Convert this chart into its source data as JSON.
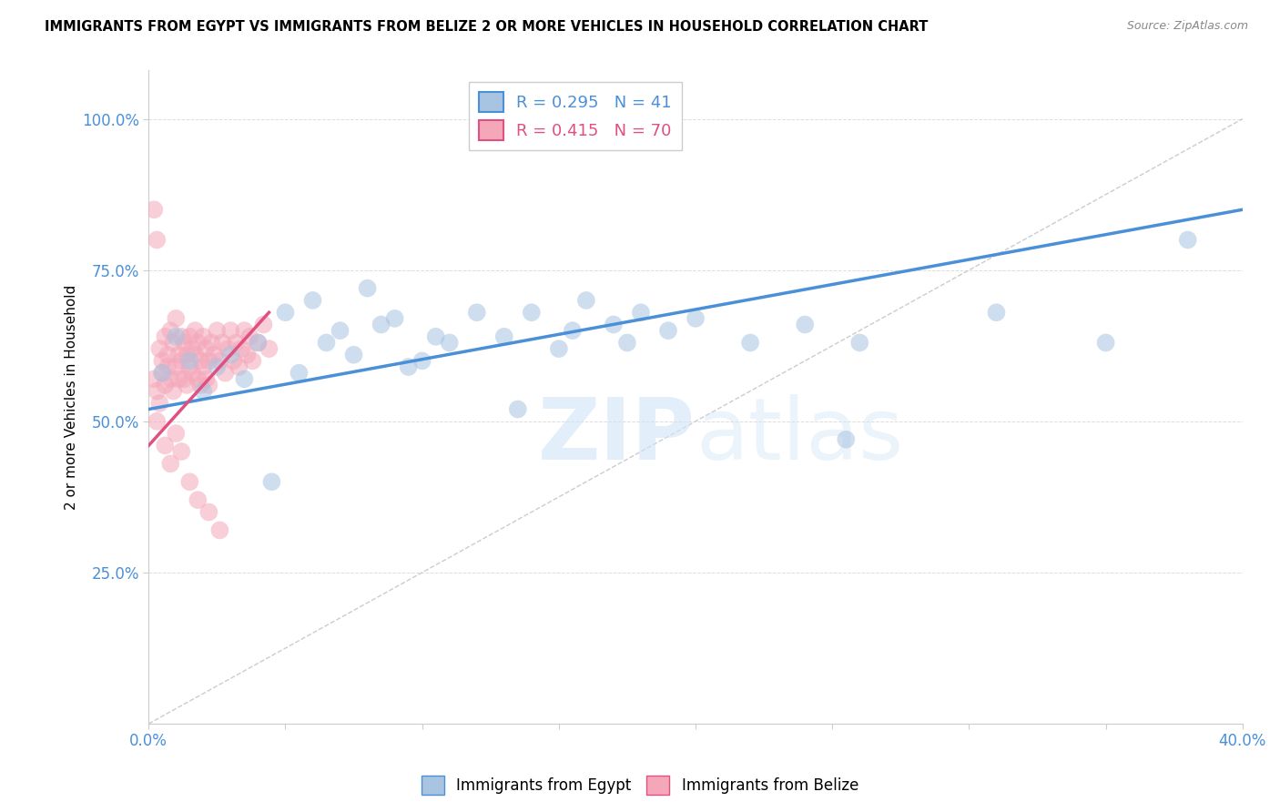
{
  "title": "IMMIGRANTS FROM EGYPT VS IMMIGRANTS FROM BELIZE 2 OR MORE VEHICLES IN HOUSEHOLD CORRELATION CHART",
  "source": "Source: ZipAtlas.com",
  "ylabel": "2 or more Vehicles in Household",
  "xlim": [
    0.0,
    0.4
  ],
  "ylim": [
    0.0,
    1.08
  ],
  "xticks": [
    0.0,
    0.05,
    0.1,
    0.15,
    0.2,
    0.25,
    0.3,
    0.35,
    0.4
  ],
  "xticklabels": [
    "0.0%",
    "",
    "",
    "",
    "",
    "",
    "",
    "",
    "40.0%"
  ],
  "yticks": [
    0.25,
    0.5,
    0.75,
    1.0
  ],
  "yticklabels": [
    "25.0%",
    "50.0%",
    "75.0%",
    "100.0%"
  ],
  "legend_egypt": "R = 0.295   N = 41",
  "legend_belize": "R = 0.415   N = 70",
  "color_egypt": "#a8c4e0",
  "color_belize": "#f4a7b9",
  "line_color_egypt": "#4a90d9",
  "line_color_belize": "#e05080",
  "watermark_zip": "ZIP",
  "watermark_atlas": "atlas",
  "egypt_x": [
    0.005,
    0.01,
    0.015,
    0.02,
    0.025,
    0.03,
    0.035,
    0.04,
    0.05,
    0.06,
    0.07,
    0.08,
    0.09,
    0.1,
    0.11,
    0.12,
    0.13,
    0.14,
    0.15,
    0.16,
    0.17,
    0.18,
    0.19,
    0.2,
    0.055,
    0.065,
    0.075,
    0.085,
    0.095,
    0.105,
    0.22,
    0.24,
    0.26,
    0.155,
    0.175,
    0.31,
    0.35,
    0.38,
    0.045,
    0.135,
    0.255
  ],
  "egypt_y": [
    0.58,
    0.64,
    0.6,
    0.55,
    0.59,
    0.61,
    0.57,
    0.63,
    0.68,
    0.7,
    0.65,
    0.72,
    0.67,
    0.6,
    0.63,
    0.68,
    0.64,
    0.68,
    0.62,
    0.7,
    0.66,
    0.68,
    0.65,
    0.67,
    0.58,
    0.63,
    0.61,
    0.66,
    0.59,
    0.64,
    0.63,
    0.66,
    0.63,
    0.65,
    0.63,
    0.68,
    0.63,
    0.8,
    0.4,
    0.52,
    0.47
  ],
  "belize_x": [
    0.002,
    0.003,
    0.004,
    0.005,
    0.005,
    0.006,
    0.006,
    0.007,
    0.007,
    0.008,
    0.008,
    0.009,
    0.009,
    0.01,
    0.01,
    0.011,
    0.011,
    0.012,
    0.012,
    0.013,
    0.013,
    0.014,
    0.014,
    0.015,
    0.015,
    0.016,
    0.016,
    0.017,
    0.017,
    0.018,
    0.018,
    0.019,
    0.019,
    0.02,
    0.02,
    0.021,
    0.021,
    0.022,
    0.022,
    0.023,
    0.024,
    0.025,
    0.026,
    0.027,
    0.028,
    0.029,
    0.03,
    0.031,
    0.032,
    0.033,
    0.034,
    0.035,
    0.036,
    0.037,
    0.038,
    0.04,
    0.042,
    0.044,
    0.003,
    0.004,
    0.006,
    0.008,
    0.01,
    0.012,
    0.015,
    0.018,
    0.022,
    0.026,
    0.002,
    0.003
  ],
  "belize_y": [
    0.57,
    0.55,
    0.62,
    0.6,
    0.58,
    0.64,
    0.56,
    0.61,
    0.59,
    0.65,
    0.57,
    0.63,
    0.55,
    0.67,
    0.59,
    0.61,
    0.57,
    0.64,
    0.6,
    0.63,
    0.57,
    0.61,
    0.56,
    0.64,
    0.59,
    0.62,
    0.58,
    0.65,
    0.61,
    0.63,
    0.57,
    0.6,
    0.56,
    0.64,
    0.59,
    0.62,
    0.57,
    0.6,
    0.56,
    0.63,
    0.61,
    0.65,
    0.6,
    0.63,
    0.58,
    0.62,
    0.65,
    0.6,
    0.63,
    0.59,
    0.62,
    0.65,
    0.61,
    0.64,
    0.6,
    0.63,
    0.66,
    0.62,
    0.5,
    0.53,
    0.46,
    0.43,
    0.48,
    0.45,
    0.4,
    0.37,
    0.35,
    0.32,
    0.85,
    0.8
  ],
  "egypt_trend_x": [
    0.0,
    0.4
  ],
  "egypt_trend_y": [
    0.52,
    0.85
  ],
  "belize_trend_x": [
    0.0,
    0.044
  ],
  "belize_trend_y": [
    0.46,
    0.68
  ]
}
